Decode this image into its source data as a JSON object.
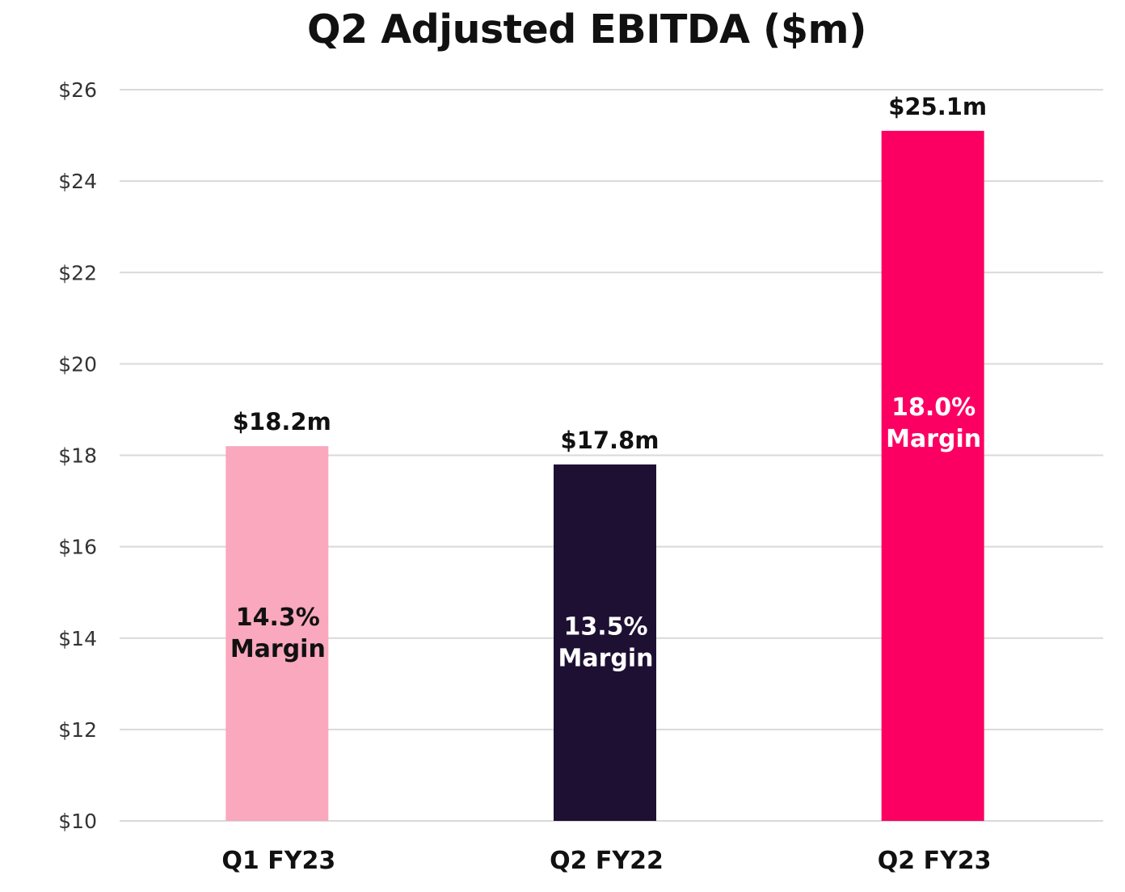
{
  "chart_data": {
    "type": "bar",
    "title": "Q2 Adjusted EBITDA ($m)",
    "xlabel": "",
    "ylabel": "",
    "categories": [
      "Q1 FY23",
      "Q2 FY22",
      "Q2 FY23"
    ],
    "values": [
      18.2,
      17.8,
      25.1
    ],
    "value_labels": [
      "$18.2m",
      "$17.8m",
      "$25.1m"
    ],
    "margins": [
      "14.3%",
      "13.5%",
      "18.0%"
    ],
    "margin_word": "Margin",
    "bar_colors": [
      "#f9a8be",
      "#1e1033",
      "#fb0062"
    ],
    "margin_text_colors": [
      "#111111",
      "#ffffff",
      "#ffffff"
    ],
    "ylim": [
      10,
      26
    ],
    "yticks": [
      10,
      12,
      14,
      16,
      18,
      20,
      22,
      24,
      26
    ],
    "ytick_labels": [
      "$10",
      "$12",
      "$14",
      "$16",
      "$18",
      "$20",
      "$22",
      "$24",
      "$26"
    ],
    "grid": true,
    "legend": "none"
  }
}
